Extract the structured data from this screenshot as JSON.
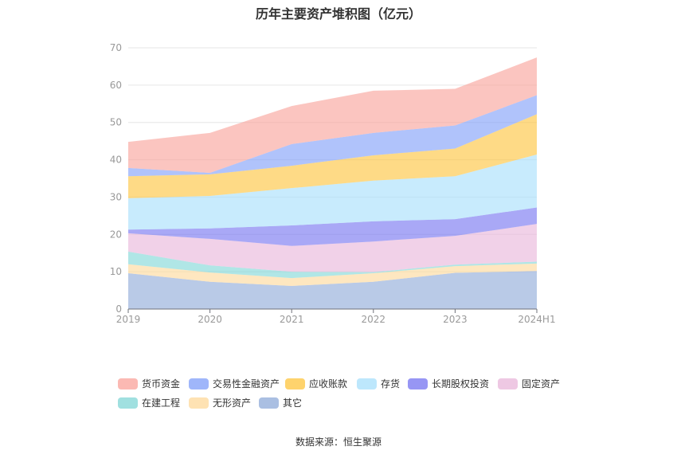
{
  "chart_data": {
    "type": "area",
    "stacked": true,
    "title": "历年主要资产堆积图（亿元）",
    "categories": [
      "2019",
      "2020",
      "2021",
      "2022",
      "2023",
      "2024H1"
    ],
    "ylim": [
      0,
      70
    ],
    "yticks": [
      0,
      10,
      20,
      30,
      40,
      50,
      60,
      70
    ],
    "grid": true,
    "legend_position": "bottom",
    "series": [
      {
        "name": "其它",
        "color": "#8eaad8",
        "values": [
          9.6,
          7.3,
          6.2,
          7.3,
          9.7,
          10.2
        ]
      },
      {
        "name": "无形资产",
        "color": "#fdd89a",
        "values": [
          2.4,
          2.5,
          2.1,
          2.3,
          1.8,
          2.0
        ]
      },
      {
        "name": "在建工程",
        "color": "#80d6d6",
        "values": [
          3.4,
          1.9,
          1.7,
          0.3,
          0.4,
          0.5
        ]
      },
      {
        "name": "固定资产",
        "color": "#e8b5da",
        "values": [
          4.9,
          7.1,
          6.9,
          8.2,
          7.7,
          10.1
        ]
      },
      {
        "name": "长期股权投资",
        "color": "#7473f0",
        "values": [
          1.0,
          2.8,
          5.5,
          5.4,
          4.5,
          4.4
        ]
      },
      {
        "name": "存货",
        "color": "#a7dffb",
        "values": [
          8.4,
          8.7,
          10.0,
          10.9,
          11.5,
          14.2
        ]
      },
      {
        "name": "应收账款",
        "color": "#fdc43c",
        "values": [
          5.9,
          5.8,
          6.0,
          6.8,
          7.4,
          10.8
        ]
      },
      {
        "name": "交易性金融资产",
        "color": "#7f9ef8",
        "values": [
          2.2,
          0.4,
          5.8,
          6.0,
          6.2,
          5.1
        ]
      },
      {
        "name": "货币资金",
        "color": "#f9a19a",
        "values": [
          7.0,
          10.7,
          10.2,
          11.3,
          9.8,
          10.1
        ]
      }
    ],
    "legend_order": [
      "货币资金",
      "交易性金融资产",
      "应收账款",
      "存货",
      "长期股权投资",
      "固定资产",
      "在建工程",
      "无形资产",
      "其它"
    ]
  },
  "source": "数据来源：恒生聚源"
}
